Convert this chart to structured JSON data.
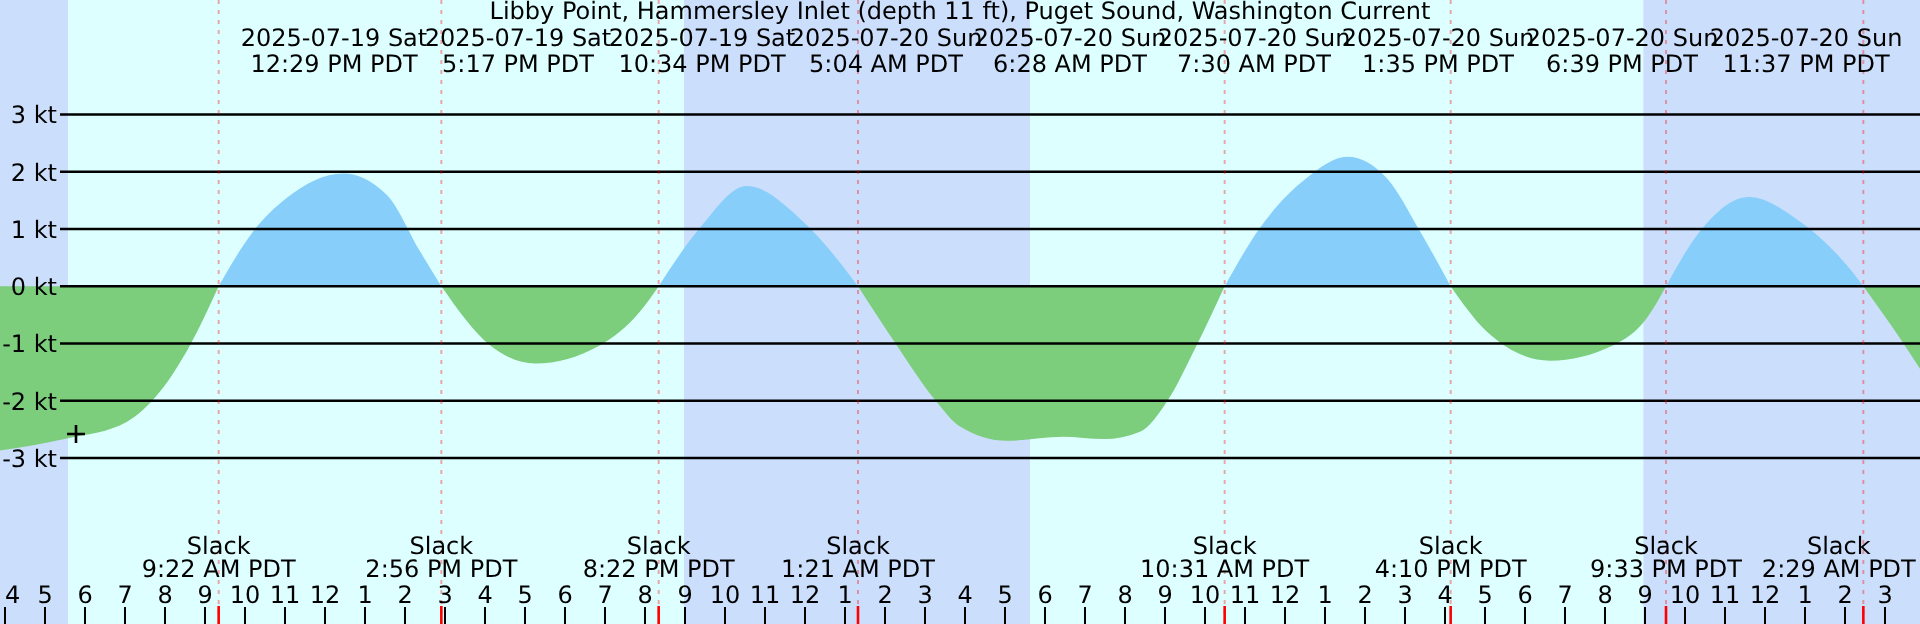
{
  "chart_data": {
    "type": "area",
    "title": "Libby Point, Hammersley Inlet (depth 11 ft), Puget Sound, Washington Current",
    "x": [
      "2025-07-19T03:54",
      "2025-07-19T05:34",
      "2025-07-19T07:04",
      "2025-07-19T07:54",
      "2025-07-19T08:39",
      "2025-07-19T09:22",
      "2025-07-19T10:14",
      "2025-07-19T11:04",
      "2025-07-19T12:29",
      "2025-07-19T13:34",
      "2025-07-19T14:24",
      "2025-07-19T14:56",
      "2025-07-19T16:09",
      "2025-07-19T17:17",
      "2025-07-19T18:54",
      "2025-07-19T19:54",
      "2025-07-19T20:22",
      "2025-07-19T21:24",
      "2025-07-19T22:34",
      "2025-07-20T00:04",
      "2025-07-20T01:21",
      "2025-07-20T02:19",
      "2025-07-20T03:19",
      "2025-07-20T03:54",
      "2025-07-20T05:04",
      "2025-07-20T06:28",
      "2025-07-20T07:30",
      "2025-07-20T08:24",
      "2025-07-20T09:04",
      "2025-07-20T09:49",
      "2025-07-20T10:31",
      "2025-07-20T11:24",
      "2025-07-20T12:34",
      "2025-07-20T13:35",
      "2025-07-20T14:34",
      "2025-07-20T15:24",
      "2025-07-20T16:10",
      "2025-07-20T17:04",
      "2025-07-20T18:39",
      "2025-07-20T20:14",
      "2025-07-20T21:04",
      "2025-07-20T21:33",
      "2025-07-20T22:24",
      "2025-07-20T23:37",
      "2025-07-21T00:54",
      "2025-07-21T02:04",
      "2025-07-21T02:29",
      "2025-07-21T03:14",
      "2025-07-21T03:54"
    ],
    "series": [
      {
        "color": "#87cefa",
        "values": [
          null,
          null,
          null,
          null,
          null,
          0,
          0.96,
          1.54,
          1.97,
          1.6,
          0.61,
          0,
          null,
          null,
          null,
          null,
          0,
          1.02,
          1.75,
          1.07,
          0,
          null,
          null,
          null,
          null,
          null,
          null,
          null,
          null,
          null,
          0,
          1.02,
          1.89,
          2.26,
          1.89,
          0.96,
          0,
          null,
          null,
          null,
          null,
          0,
          0.96,
          1.56,
          1.13,
          0.37,
          0,
          null,
          null
        ]
      },
      {
        "color": "#7ccd7c",
        "values": [
          -2.87,
          -2.66,
          -2.37,
          -1.84,
          -1.03,
          0,
          null,
          null,
          null,
          null,
          null,
          0,
          -1.03,
          -1.35,
          -1.03,
          -0.44,
          0,
          null,
          null,
          null,
          0,
          -1.03,
          -2.02,
          -2.45,
          -2.7,
          -2.63,
          -2.67,
          -2.54,
          -2.02,
          -1.03,
          0,
          null,
          null,
          null,
          null,
          null,
          0,
          -0.79,
          -1.3,
          -1.03,
          -0.56,
          0,
          null,
          null,
          null,
          null,
          0,
          -0.74,
          -1.44
        ]
      },
      {
        "type": "scatter",
        "marker": "cross",
        "color": "#000000",
        "x": [
          "2025-07-19T05:48"
        ],
        "values": [
          -2.58
        ]
      }
    ],
    "xlim": [
      "2025-07-19T03:54",
      "2025-07-21T03:54"
    ],
    "xticks": [
      {
        "value": "2025-07-19T04:00",
        "label": "4"
      },
      {
        "value": "2025-07-19T05:00",
        "label": "5"
      },
      {
        "value": "2025-07-19T06:00",
        "label": "6"
      },
      {
        "value": "2025-07-19T07:00",
        "label": "7"
      },
      {
        "value": "2025-07-19T08:00",
        "label": "8"
      },
      {
        "value": "2025-07-19T09:00",
        "label": "9"
      },
      {
        "value": "2025-07-19T10:00",
        "label": "10"
      },
      {
        "value": "2025-07-19T11:00",
        "label": "11"
      },
      {
        "value": "2025-07-19T12:00",
        "label": "12"
      },
      {
        "value": "2025-07-19T13:00",
        "label": "1"
      },
      {
        "value": "2025-07-19T14:00",
        "label": "2"
      },
      {
        "value": "2025-07-19T15:00",
        "label": "3"
      },
      {
        "value": "2025-07-19T16:00",
        "label": "4"
      },
      {
        "value": "2025-07-19T17:00",
        "label": "5"
      },
      {
        "value": "2025-07-19T18:00",
        "label": "6"
      },
      {
        "value": "2025-07-19T19:00",
        "label": "7"
      },
      {
        "value": "2025-07-19T20:00",
        "label": "8"
      },
      {
        "value": "2025-07-19T21:00",
        "label": "9"
      },
      {
        "value": "2025-07-19T22:00",
        "label": "10"
      },
      {
        "value": "2025-07-19T23:00",
        "label": "11"
      },
      {
        "value": "2025-07-20T00:00",
        "label": "12"
      },
      {
        "value": "2025-07-20T01:00",
        "label": "1"
      },
      {
        "value": "2025-07-20T02:00",
        "label": "2"
      },
      {
        "value": "2025-07-20T03:00",
        "label": "3"
      },
      {
        "value": "2025-07-20T04:00",
        "label": "4"
      },
      {
        "value": "2025-07-20T05:00",
        "label": "5"
      },
      {
        "value": "2025-07-20T06:00",
        "label": "6"
      },
      {
        "value": "2025-07-20T07:00",
        "label": "7"
      },
      {
        "value": "2025-07-20T08:00",
        "label": "8"
      },
      {
        "value": "2025-07-20T09:00",
        "label": "9"
      },
      {
        "value": "2025-07-20T10:00",
        "label": "10"
      },
      {
        "value": "2025-07-20T11:00",
        "label": "11"
      },
      {
        "value": "2025-07-20T12:00",
        "label": "12"
      },
      {
        "value": "2025-07-20T13:00",
        "label": "1"
      },
      {
        "value": "2025-07-20T14:00",
        "label": "2"
      },
      {
        "value": "2025-07-20T15:00",
        "label": "3"
      },
      {
        "value": "2025-07-20T16:00",
        "label": "4"
      },
      {
        "value": "2025-07-20T17:00",
        "label": "5"
      },
      {
        "value": "2025-07-20T18:00",
        "label": "6"
      },
      {
        "value": "2025-07-20T19:00",
        "label": "7"
      },
      {
        "value": "2025-07-20T20:00",
        "label": "8"
      },
      {
        "value": "2025-07-20T21:00",
        "label": "9"
      },
      {
        "value": "2025-07-20T22:00",
        "label": "10"
      },
      {
        "value": "2025-07-20T23:00",
        "label": "11"
      },
      {
        "value": "2025-07-21T00:00",
        "label": "12"
      },
      {
        "value": "2025-07-21T01:00",
        "label": "1"
      },
      {
        "value": "2025-07-21T02:00",
        "label": "2"
      },
      {
        "value": "2025-07-21T03:00",
        "label": "3"
      }
    ],
    "ylim": [
      -5.9,
      5.0
    ],
    "yticks": [
      {
        "value": -3,
        "label": "-3 kt"
      },
      {
        "value": -2,
        "label": "-2 kt"
      },
      {
        "value": -1,
        "label": "-1 kt"
      },
      {
        "value": 0,
        "label": "0 kt"
      },
      {
        "value": 1,
        "label": "1 kt"
      },
      {
        "value": 2,
        "label": "2 kt"
      },
      {
        "value": 3,
        "label": "3 kt"
      }
    ],
    "grid": "y",
    "bands": [
      {
        "axis": "x",
        "from": "2025-07-19T03:54",
        "to": "2025-07-19T05:36",
        "color": "#cbdffc"
      },
      {
        "axis": "x",
        "from": "2025-07-19T05:36",
        "to": "2025-07-19T21:00",
        "color": "#ddffff"
      },
      {
        "axis": "x",
        "from": "2025-07-19T21:00",
        "to": "2025-07-20T05:39",
        "color": "#cbdffc"
      },
      {
        "axis": "x",
        "from": "2025-07-20T05:39",
        "to": "2025-07-20T20:59",
        "color": "#ddffff"
      },
      {
        "axis": "x",
        "from": "2025-07-20T20:59",
        "to": "2025-07-21T03:54",
        "color": "#cbdffc"
      }
    ],
    "ref_lines": [
      {
        "axis": "x",
        "value": "2025-07-19T09:22",
        "label": "Slack\n9:22 AM PDT",
        "color": "#ff0000"
      },
      {
        "axis": "x",
        "value": "2025-07-19T14:56",
        "label": "Slack\n2:56 PM PDT",
        "color": "#ff0000"
      },
      {
        "axis": "x",
        "value": "2025-07-19T20:22",
        "label": "Slack\n8:22 PM PDT",
        "color": "#ff0000"
      },
      {
        "axis": "x",
        "value": "2025-07-20T01:21",
        "label": "Slack\n1:21 AM PDT",
        "color": "#ff0000"
      },
      {
        "axis": "x",
        "value": "2025-07-20T10:31",
        "label": "Slack\n10:31 AM PDT",
        "color": "#ff0000"
      },
      {
        "axis": "x",
        "value": "2025-07-20T16:10",
        "label": "Slack\n4:10 PM PDT",
        "color": "#ff0000"
      },
      {
        "axis": "x",
        "value": "2025-07-20T21:33",
        "label": "Slack\n9:33 PM PDT",
        "color": "#ff0000"
      },
      {
        "axis": "x",
        "value": "2025-07-21T02:29",
        "label": "Slack\n2:29 AM PDT",
        "color": "#ff0000"
      }
    ],
    "annotations": [
      "2025-07-19 Sat\n12:29 PM PDT",
      "2025-07-19 Sat\n5:17 PM PDT",
      "2025-07-19 Sat\n10:34 PM PDT",
      "2025-07-20 Sun\n5:04 AM PDT",
      "2025-07-20 Sun\n6:28 AM PDT",
      "2025-07-20 Sun\n7:30 AM PDT",
      "2025-07-20 Sun\n1:35 PM PDT",
      "2025-07-20 Sun\n6:39 PM PDT",
      "2025-07-20 Sun\n11:37 PM PDT"
    ]
  }
}
